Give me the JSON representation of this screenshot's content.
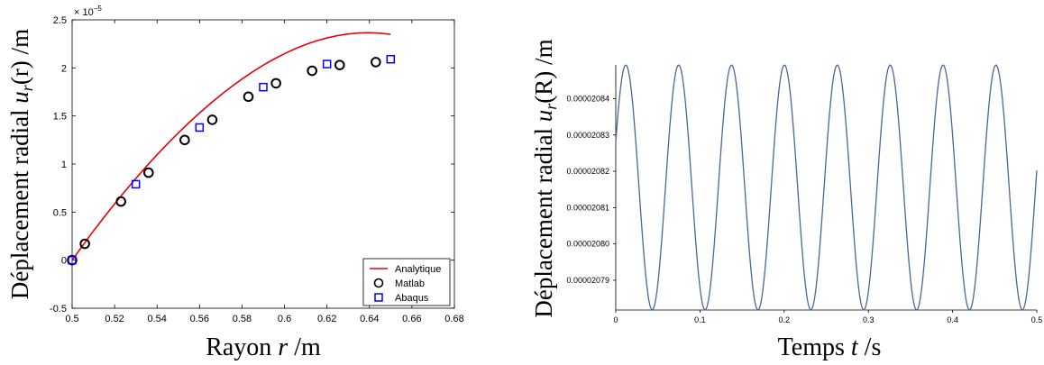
{
  "chart_data": [
    {
      "type": "scatter",
      "title": "",
      "xlabel_prefix": "Rayon ",
      "xlabel_var": "r",
      "xlabel_unit": " /m",
      "ylabel_prefix": "Déplacement radial ",
      "ylabel_var": "u",
      "ylabel_sub": "r",
      "ylabel_arg": "(r)",
      "ylabel_unit": " /m",
      "y_exponent": "× 10",
      "y_exponent_power": "−5",
      "xlim": [
        0.5,
        0.68
      ],
      "ylim": [
        -0.5,
        2.5
      ],
      "xticks": [
        "0.5",
        "0.52",
        "0.54",
        "0.56",
        "0.58",
        "0.6",
        "0.62",
        "0.64",
        "0.66",
        "0.68"
      ],
      "yticks": [
        "-0.5",
        "0",
        "0.5",
        "1",
        "1.5",
        "2",
        "2.5"
      ],
      "legend_position": "bottom-right",
      "grid": false,
      "series": [
        {
          "name": "Analytique",
          "kind": "line",
          "color": "#e8000b",
          "x": [
            0.5,
            0.505,
            0.51,
            0.515,
            0.52,
            0.525,
            0.53,
            0.535,
            0.54,
            0.545,
            0.55,
            0.555,
            0.56,
            0.565,
            0.57,
            0.575,
            0.58,
            0.585,
            0.59,
            0.595,
            0.6,
            0.605,
            0.61,
            0.615,
            0.62,
            0.625,
            0.63,
            0.635,
            0.64,
            0.645,
            0.65
          ],
          "y": [
            0.0,
            0.153,
            0.302,
            0.446,
            0.585,
            0.72,
            0.85,
            0.976,
            1.097,
            1.213,
            1.324,
            1.43,
            1.531,
            1.627,
            1.718,
            1.804,
            1.884,
            1.959,
            2.028,
            2.091,
            2.148,
            2.199,
            2.243,
            2.281,
            2.312,
            2.336,
            2.353,
            2.363,
            2.366,
            2.361,
            2.349
          ]
        },
        {
          "name": "Matlab",
          "kind": "marker-circle",
          "color": "#000000",
          "x": [
            0.5,
            0.506,
            0.523,
            0.536,
            0.553,
            0.566,
            0.583,
            0.596,
            0.613,
            0.626,
            0.643
          ],
          "y": [
            0.0,
            0.17,
            0.61,
            0.91,
            1.25,
            1.46,
            1.7,
            1.84,
            1.97,
            2.03,
            2.06
          ]
        },
        {
          "name": "Abaqus",
          "kind": "marker-square",
          "color": "#0000ff",
          "x": [
            0.5,
            0.53,
            0.56,
            0.59,
            0.62,
            0.65
          ],
          "y": [
            0.0,
            0.79,
            1.38,
            1.8,
            2.04,
            2.09
          ]
        }
      ]
    },
    {
      "type": "line",
      "title": "",
      "xlabel_prefix": "Temps ",
      "xlabel_var": "t",
      "xlabel_unit": "  /s",
      "ylabel_prefix": "Déplacement radial ",
      "ylabel_var": "u",
      "ylabel_sub": "r",
      "ylabel_arg": "(R)",
      "ylabel_unit": " /m",
      "xlim": [
        0,
        0.5
      ],
      "ylim": [
        2.07818e-05,
        2.08493e-05
      ],
      "xticks": [
        "0",
        "0.1",
        "0.2",
        "0.3",
        "0.4",
        "0.5"
      ],
      "yticks": [
        "0.00002079",
        "0.00002080",
        "0.00002081",
        "0.00002082",
        "0.00002083",
        "0.00002084"
      ],
      "ytick_values": [
        2.079e-05,
        2.08e-05,
        2.081e-05,
        2.082e-05,
        2.083e-05,
        2.084e-05
      ],
      "grid": false,
      "series": [
        {
          "name": "",
          "color": "#4a6897",
          "function": "sine",
          "amplitude": 3.37e-08,
          "center": 2.081555e-05,
          "period": 0.0628,
          "phase_at_t0": 0.38,
          "t_start": 0.0,
          "t_end": 0.5
        }
      ]
    }
  ]
}
